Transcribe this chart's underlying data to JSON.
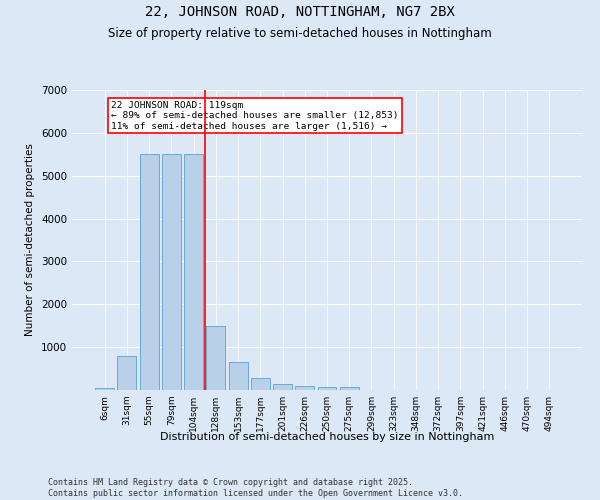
{
  "title": "22, JOHNSON ROAD, NOTTINGHAM, NG7 2BX",
  "subtitle": "Size of property relative to semi-detached houses in Nottingham",
  "xlabel": "Distribution of semi-detached houses by size in Nottingham",
  "ylabel": "Number of semi-detached properties",
  "categories": [
    "6sqm",
    "31sqm",
    "55sqm",
    "79sqm",
    "104sqm",
    "128sqm",
    "153sqm",
    "177sqm",
    "201sqm",
    "226sqm",
    "250sqm",
    "275sqm",
    "299sqm",
    "323sqm",
    "348sqm",
    "372sqm",
    "397sqm",
    "421sqm",
    "446sqm",
    "470sqm",
    "494sqm"
  ],
  "values": [
    55,
    800,
    5500,
    5500,
    5500,
    1490,
    650,
    275,
    150,
    100,
    65,
    65,
    0,
    0,
    0,
    0,
    0,
    0,
    0,
    0,
    0
  ],
  "bar_color": "#b8d0e8",
  "bar_edge_color": "#6aaad4",
  "vline_x": 4.5,
  "vline_color": "red",
  "annotation_title": "22 JOHNSON ROAD: 119sqm",
  "annotation_line1": "← 89% of semi-detached houses are smaller (12,853)",
  "annotation_line2": "11% of semi-detached houses are larger (1,516) →",
  "ylim": [
    0,
    7000
  ],
  "yticks": [
    0,
    1000,
    2000,
    3000,
    4000,
    5000,
    6000,
    7000
  ],
  "footer_line1": "Contains HM Land Registry data © Crown copyright and database right 2025.",
  "footer_line2": "Contains public sector information licensed under the Open Government Licence v3.0.",
  "bg_color": "#dce8f5",
  "plot_bg_color": "#dce8f5",
  "title_fontsize": 10,
  "subtitle_fontsize": 8.5,
  "figsize": [
    6.0,
    5.0
  ],
  "dpi": 100
}
